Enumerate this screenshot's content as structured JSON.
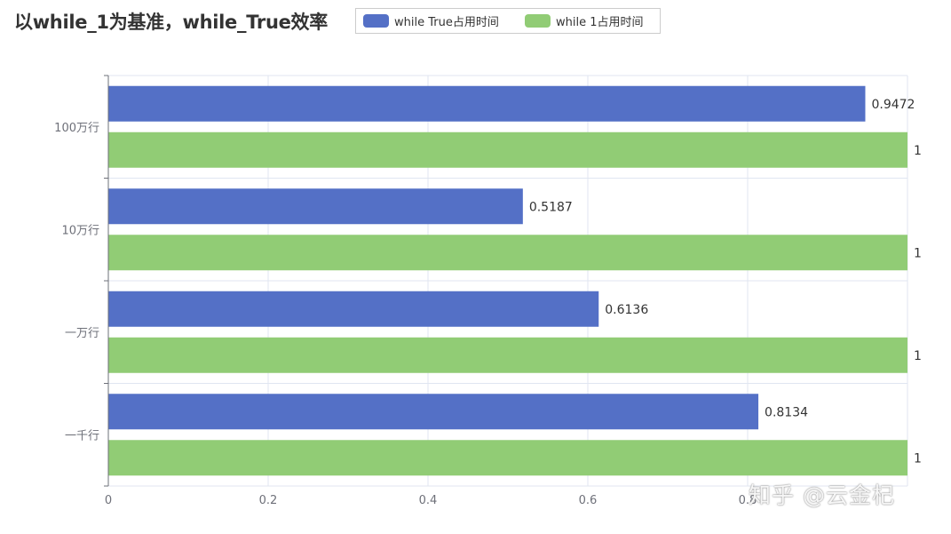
{
  "title": "以while_1为基准，while_True效率",
  "legend": [
    {
      "label": "while True占用时间",
      "color": "#5470c6"
    },
    {
      "label": "while 1占用时间",
      "color": "#91cc75"
    }
  ],
  "watermark": "知乎 @云金杞",
  "chart_data": {
    "type": "bar",
    "orientation": "horizontal",
    "categories": [
      "100万行",
      "10万行",
      "一万行",
      "一千行"
    ],
    "series": [
      {
        "name": "while True占用时间",
        "color": "#5470c6",
        "values": [
          0.9472,
          0.5187,
          0.6136,
          0.8134
        ]
      },
      {
        "name": "while 1占用时间",
        "color": "#91cc75",
        "values": [
          1,
          1,
          1,
          1
        ]
      }
    ],
    "xlim": [
      0,
      1
    ],
    "xticks": [
      0,
      0.2,
      0.4,
      0.6,
      0.8
    ],
    "grid": true,
    "legend_position": "top"
  }
}
